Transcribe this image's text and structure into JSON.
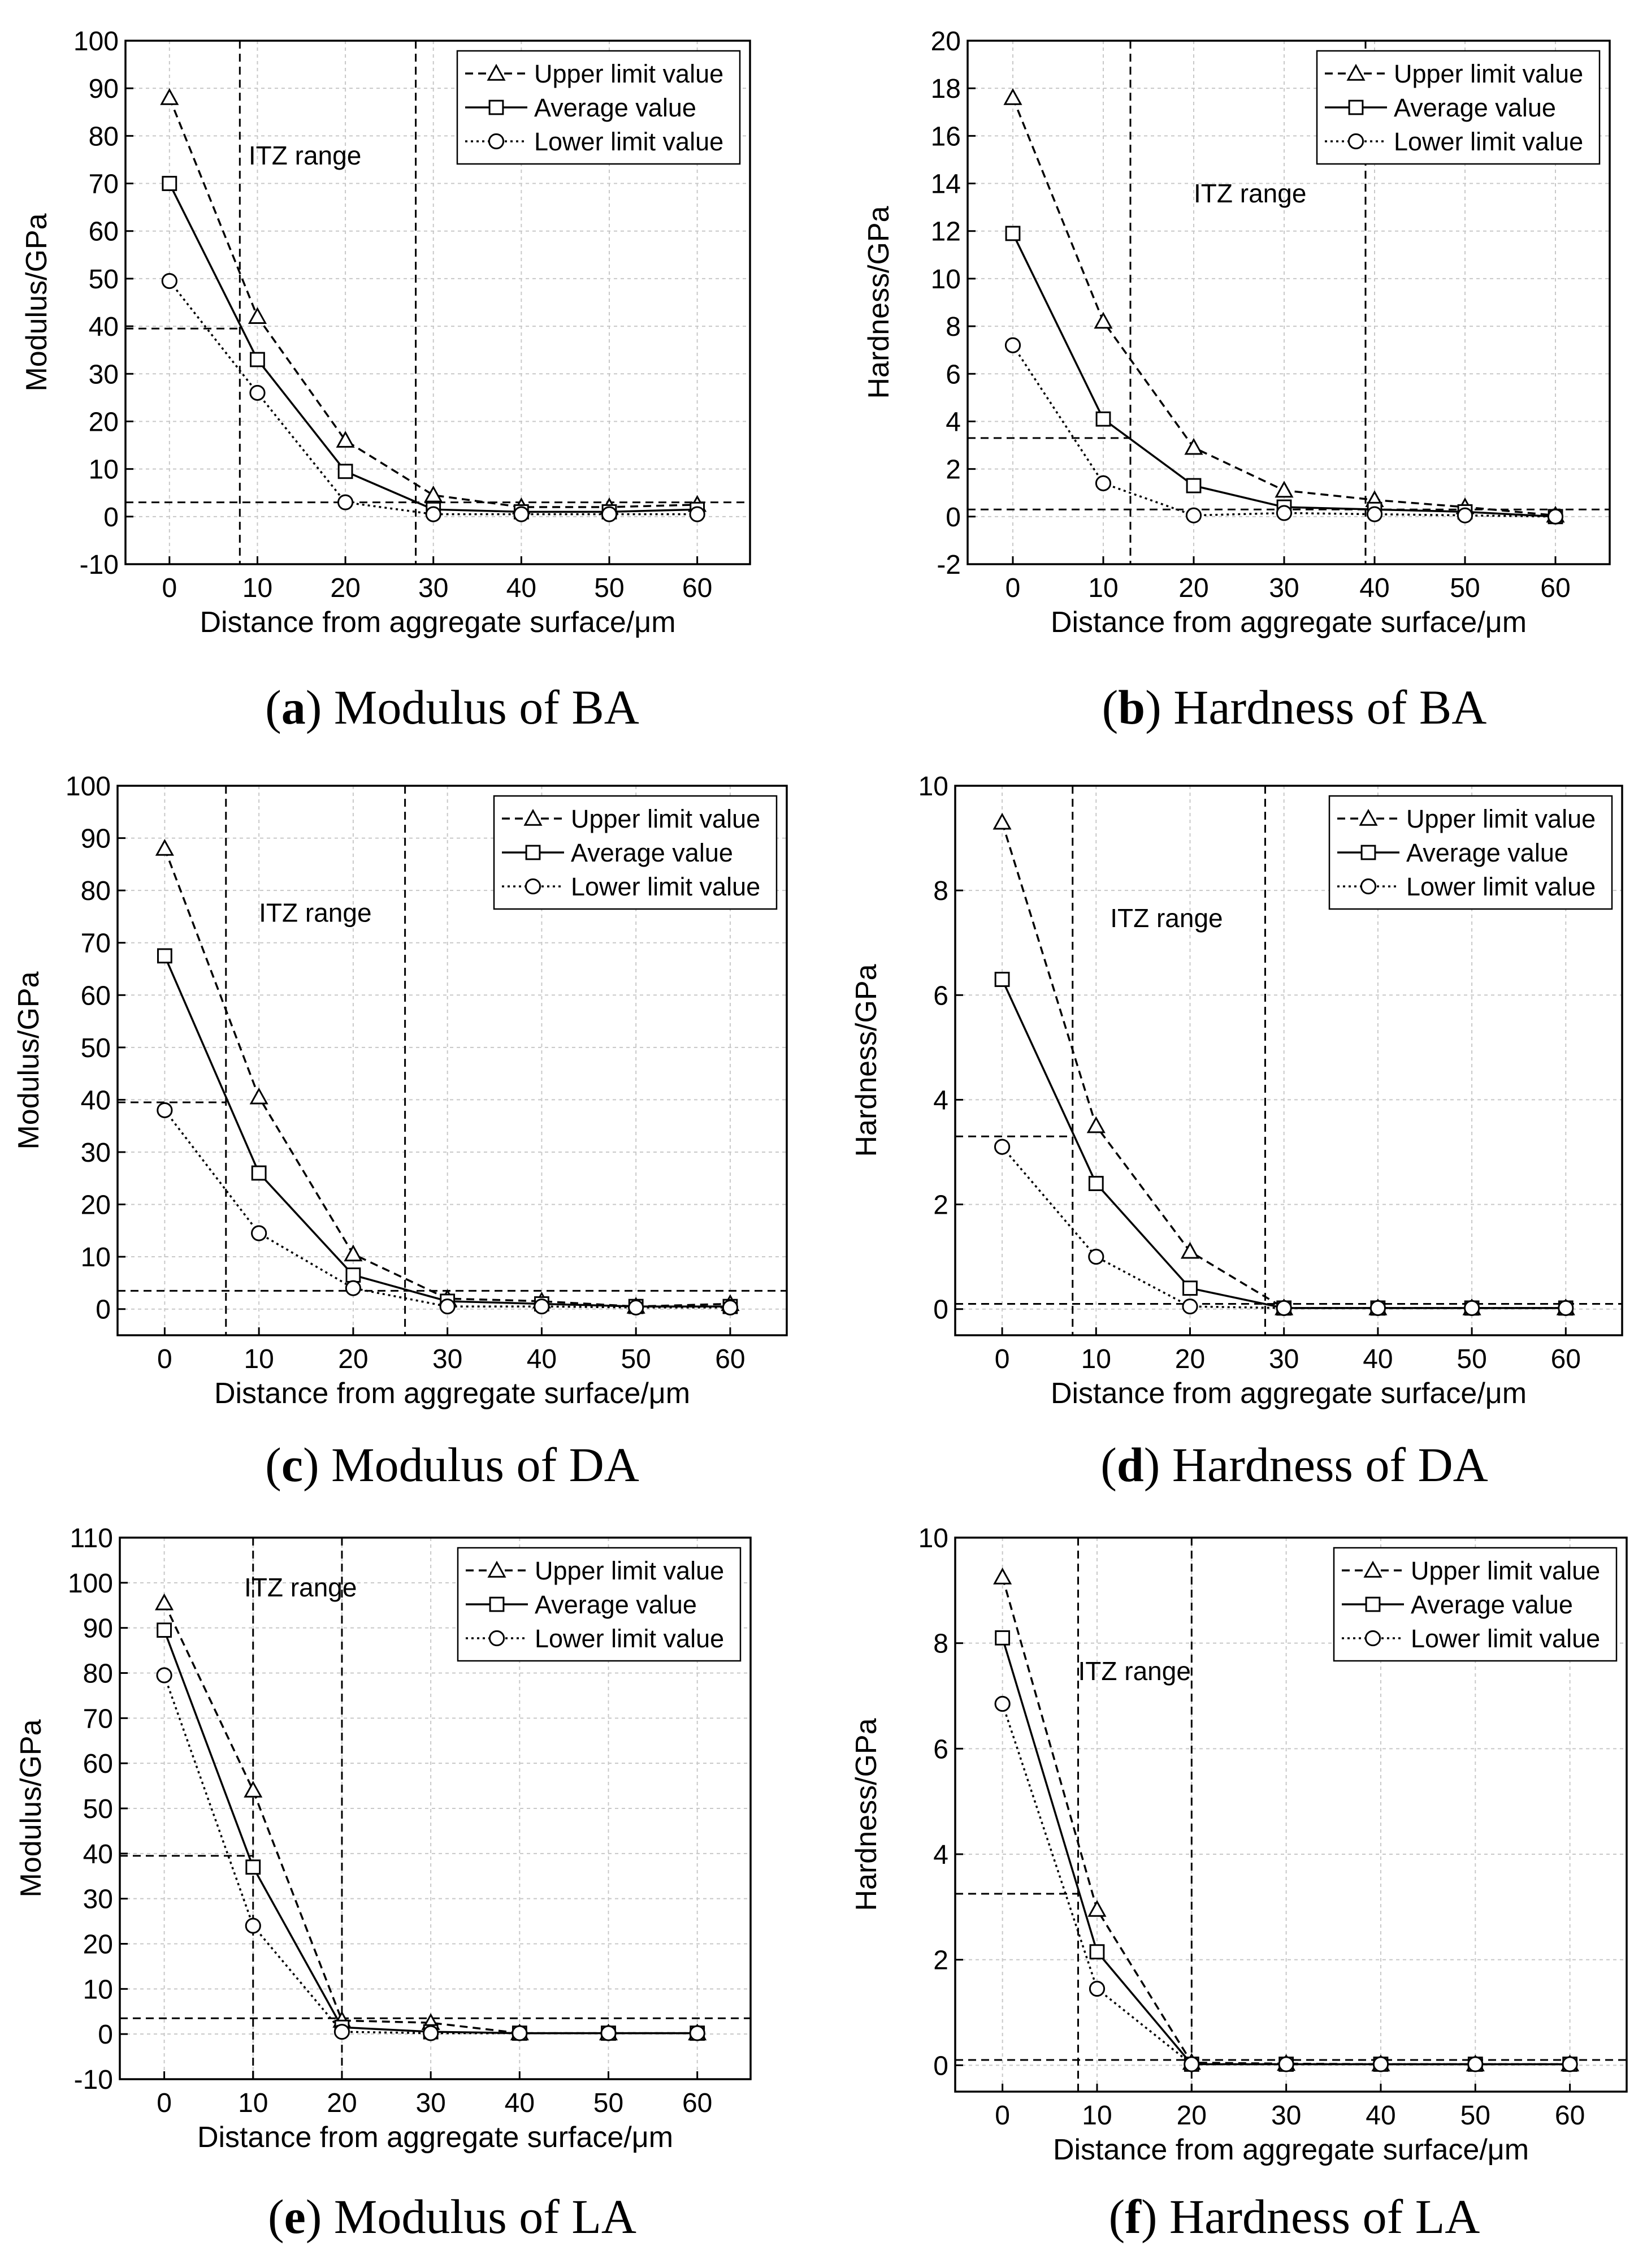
{
  "figure": {
    "panels": [
      "a",
      "b",
      "c",
      "d",
      "e",
      "f"
    ]
  },
  "chart_data": [
    {
      "id": "a",
      "type": "line",
      "caption_letter": "a",
      "caption_text": "Modulus of BA",
      "xlabel": "Distance from aggregate surface/μm",
      "ylabel": "Modulus/GPa",
      "xlim": [
        -5,
        66
      ],
      "ylim": [
        -10,
        100
      ],
      "xticks": [
        0,
        10,
        20,
        30,
        40,
        50,
        60
      ],
      "yticks": [
        -10,
        0,
        10,
        20,
        30,
        40,
        50,
        60,
        70,
        80,
        90,
        100
      ],
      "ytick_labels": [
        "-10",
        "0",
        "10",
        "20",
        "30",
        "40",
        "50",
        "60",
        "70",
        "80",
        "90",
        "100"
      ],
      "grid": true,
      "x": [
        0,
        10,
        20,
        30,
        40,
        50,
        60
      ],
      "series": [
        {
          "name": "Upper limit value",
          "marker": "triangle",
          "dash": "dashed",
          "values": [
            88,
            42,
            16,
            4.5,
            2,
            2,
            2.5
          ]
        },
        {
          "name": "Average value",
          "marker": "square",
          "dash": "solid",
          "values": [
            70,
            33,
            9.5,
            1.5,
            1,
            1,
            1.5
          ]
        },
        {
          "name": "Lower limit value",
          "marker": "circle",
          "dash": "dotted",
          "values": [
            49.5,
            26,
            3,
            0.5,
            0.5,
            0.5,
            0.5
          ]
        }
      ],
      "itz_lines": [
        8,
        28
      ],
      "h_refs": [
        {
          "y": 39.5,
          "x_end": 8
        },
        {
          "y": 3,
          "x_end": 66
        }
      ],
      "annotation": {
        "text": "ITZ range",
        "x": 9,
        "y": 74
      },
      "legend_position": "top-right"
    },
    {
      "id": "b",
      "type": "line",
      "caption_letter": "b",
      "caption_text": "Hardness of BA",
      "xlabel": "Distance from aggregate surface/μm",
      "ylabel": "Hardness/GPa",
      "xlim": [
        -5,
        66
      ],
      "ylim": [
        -2,
        20
      ],
      "xticks": [
        0,
        10,
        20,
        30,
        40,
        50,
        60
      ],
      "yticks": [
        -2,
        0,
        2,
        4,
        6,
        8,
        10,
        12,
        14,
        16,
        18,
        20
      ],
      "ytick_labels": [
        "-2",
        "0",
        "2",
        "4",
        "6",
        "8",
        "10",
        "12",
        "14",
        "16",
        "18",
        "20"
      ],
      "grid": true,
      "x": [
        0,
        10,
        20,
        30,
        40,
        50,
        60
      ],
      "series": [
        {
          "name": "Upper limit value",
          "marker": "triangle",
          "dash": "dashed",
          "values": [
            17.6,
            8.2,
            2.9,
            1.1,
            0.7,
            0.4,
            0.05
          ]
        },
        {
          "name": "Average value",
          "marker": "square",
          "dash": "solid",
          "values": [
            11.9,
            4.1,
            1.3,
            0.4,
            0.3,
            0.2,
            0.0
          ]
        },
        {
          "name": "Lower limit value",
          "marker": "circle",
          "dash": "dotted",
          "values": [
            7.2,
            1.4,
            0.05,
            0.15,
            0.1,
            0.05,
            0.0
          ]
        }
      ],
      "itz_lines": [
        13,
        39
      ],
      "h_refs": [
        {
          "y": 3.3,
          "x_end": 13
        },
        {
          "y": 0.3,
          "x_end": 66
        }
      ],
      "annotation": {
        "text": "ITZ range",
        "x": 20,
        "y": 13.2
      },
      "legend_position": "top-right"
    },
    {
      "id": "c",
      "type": "line",
      "caption_letter": "c",
      "caption_text": "Modulus of DA",
      "xlabel": "Distance from aggregate surface/μm",
      "ylabel": "Modulus/GPa",
      "xlim": [
        -5,
        66
      ],
      "ylim": [
        -5,
        100
      ],
      "xticks": [
        0,
        10,
        20,
        30,
        40,
        50,
        60
      ],
      "yticks": [
        0,
        10,
        20,
        30,
        40,
        50,
        60,
        70,
        80,
        90,
        100
      ],
      "ytick_labels": [
        "0",
        "10",
        "20",
        "30",
        "40",
        "50",
        "60",
        "70",
        "80",
        "90",
        "100"
      ],
      "grid": true,
      "x": [
        0,
        10,
        20,
        30,
        40,
        50,
        60
      ],
      "series": [
        {
          "name": "Upper limit value",
          "marker": "triangle",
          "dash": "dashed",
          "values": [
            88,
            40.5,
            10.5,
            2,
            1.5,
            0.5,
            1
          ]
        },
        {
          "name": "Average value",
          "marker": "square",
          "dash": "solid",
          "values": [
            67.5,
            26,
            6.5,
            1.5,
            1,
            0.5,
            0.5
          ]
        },
        {
          "name": "Lower limit value",
          "marker": "circle",
          "dash": "dotted",
          "values": [
            38,
            14.5,
            4,
            0.5,
            0.5,
            0.3,
            0.3
          ]
        }
      ],
      "itz_lines": [
        6.5,
        25.5
      ],
      "h_refs": [
        {
          "y": 39.5,
          "x_end": 6.5
        },
        {
          "y": 3.5,
          "x_end": 66
        }
      ],
      "annotation": {
        "text": "ITZ range",
        "x": 10,
        "y": 74
      },
      "legend_position": "top-right"
    },
    {
      "id": "d",
      "type": "line",
      "caption_letter": "d",
      "caption_text": "Hardness of DA",
      "xlabel": "Distance from aggregate surface/μm",
      "ylabel": "Hardness/GPa",
      "xlim": [
        -5,
        66
      ],
      "ylim": [
        -0.5,
        10
      ],
      "xticks": [
        0,
        10,
        20,
        30,
        40,
        50,
        60
      ],
      "yticks": [
        0,
        2,
        4,
        6,
        8,
        10
      ],
      "ytick_labels": [
        "0",
        "2",
        "4",
        "6",
        "8",
        "10"
      ],
      "grid": true,
      "x": [
        0,
        10,
        20,
        30,
        40,
        50,
        60
      ],
      "series": [
        {
          "name": "Upper limit value",
          "marker": "triangle",
          "dash": "dashed",
          "values": [
            9.3,
            3.5,
            1.1,
            0.02,
            0.02,
            0.02,
            0.02
          ]
        },
        {
          "name": "Average value",
          "marker": "square",
          "dash": "solid",
          "values": [
            6.3,
            2.4,
            0.4,
            0.02,
            0.02,
            0.02,
            0.02
          ]
        },
        {
          "name": "Lower limit value",
          "marker": "circle",
          "dash": "dotted",
          "values": [
            3.1,
            1.0,
            0.05,
            0.02,
            0.02,
            0.02,
            0.02
          ]
        }
      ],
      "itz_lines": [
        7.5,
        28
      ],
      "h_refs": [
        {
          "y": 3.3,
          "x_end": 7.5
        },
        {
          "y": 0.1,
          "x_end": 66
        }
      ],
      "annotation": {
        "text": "ITZ range",
        "x": 11.5,
        "y": 7.3
      },
      "legend_position": "top-right"
    },
    {
      "id": "e",
      "type": "line",
      "caption_letter": "e",
      "caption_text": "Modulus of LA",
      "xlabel": "Distance from aggregate surface/μm",
      "ylabel": "Modulus/GPa",
      "xlim": [
        -5,
        66
      ],
      "ylim": [
        -10,
        110
      ],
      "xticks": [
        0,
        10,
        20,
        30,
        40,
        50,
        60
      ],
      "yticks": [
        -10,
        0,
        10,
        20,
        30,
        40,
        50,
        60,
        70,
        80,
        90,
        100,
        110
      ],
      "ytick_labels": [
        "-10",
        "0",
        "10",
        "20",
        "30",
        "40",
        "50",
        "60",
        "70",
        "80",
        "90",
        "100",
        "110"
      ],
      "grid": true,
      "x": [
        0,
        10,
        20,
        30,
        40,
        50,
        60
      ],
      "series": [
        {
          "name": "Upper limit value",
          "marker": "triangle",
          "dash": "dashed",
          "values": [
            95.5,
            54,
            3,
            2.5,
            0.2,
            0.2,
            0.2
          ]
        },
        {
          "name": "Average value",
          "marker": "square",
          "dash": "solid",
          "values": [
            89.5,
            37,
            1.5,
            0.5,
            0.2,
            0.2,
            0.2
          ]
        },
        {
          "name": "Lower limit value",
          "marker": "circle",
          "dash": "dotted",
          "values": [
            79.5,
            24,
            0.5,
            0.2,
            0.2,
            0.2,
            0.2
          ]
        }
      ],
      "itz_lines": [
        10,
        20
      ],
      "h_refs": [
        {
          "y": 39.5,
          "x_end": 10
        },
        {
          "y": 3.5,
          "x_end": 66
        }
      ],
      "annotation": {
        "text": "ITZ range",
        "x": 9,
        "y": 97
      },
      "legend_position": "top-right"
    },
    {
      "id": "f",
      "type": "line",
      "caption_letter": "f",
      "caption_text": "Hardness of LA",
      "xlabel": "Distance from aggregate surface/μm",
      "ylabel": "Hardness/GPa",
      "xlim": [
        -5,
        66
      ],
      "ylim": [
        -0.5,
        10
      ],
      "xticks": [
        0,
        10,
        20,
        30,
        40,
        50,
        60
      ],
      "yticks": [
        0,
        2,
        4,
        6,
        8,
        10
      ],
      "ytick_labels": [
        "0",
        "2",
        "4",
        "6",
        "8",
        "10"
      ],
      "grid": true,
      "x": [
        0,
        10,
        20,
        30,
        40,
        50,
        60
      ],
      "series": [
        {
          "name": "Upper limit value",
          "marker": "triangle",
          "dash": "dashed",
          "values": [
            9.25,
            2.95,
            0.05,
            0.03,
            0.02,
            0.02,
            0.02
          ]
        },
        {
          "name": "Average value",
          "marker": "square",
          "dash": "solid",
          "values": [
            8.1,
            2.15,
            0.02,
            0.02,
            0.02,
            0.02,
            0.02
          ]
        },
        {
          "name": "Lower limit value",
          "marker": "circle",
          "dash": "dotted",
          "values": [
            6.85,
            1.45,
            0.02,
            0.02,
            0.02,
            0.02,
            0.02
          ]
        }
      ],
      "itz_lines": [
        8,
        20
      ],
      "h_refs": [
        {
          "y": 3.25,
          "x_end": 8
        },
        {
          "y": 0.1,
          "x_end": 66
        }
      ],
      "annotation": {
        "text": "ITZ range",
        "x": 8,
        "y": 7.3
      },
      "legend_position": "top-right"
    }
  ]
}
